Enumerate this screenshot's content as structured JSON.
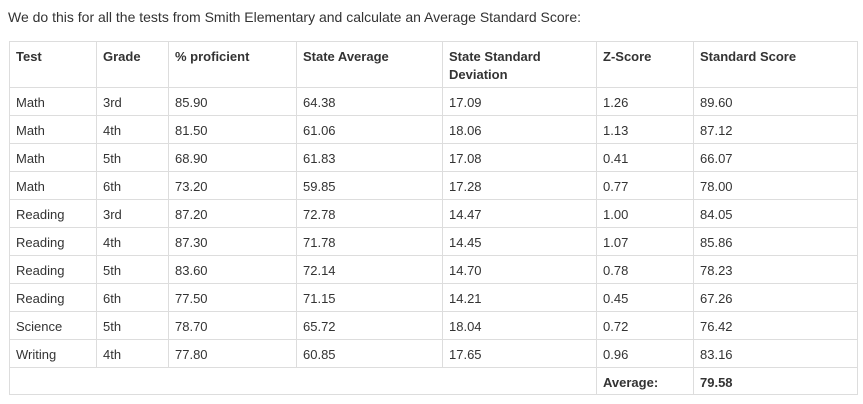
{
  "intro_text": "We do this for all the tests from Smith Elementary and calculate an Average Standard Score:",
  "table": {
    "headers": [
      "Test",
      "Grade",
      "% proficient",
      "State Average",
      "State Standard Deviation",
      "Z-Score",
      "Standard Score"
    ],
    "rows": [
      [
        "Math",
        "3rd",
        "85.90",
        "64.38",
        "17.09",
        "1.26",
        "89.60"
      ],
      [
        "Math",
        "4th",
        "81.50",
        "61.06",
        "18.06",
        "1.13",
        "87.12"
      ],
      [
        "Math",
        "5th",
        "68.90",
        "61.83",
        "17.08",
        "0.41",
        "66.07"
      ],
      [
        "Math",
        "6th",
        "73.20",
        "59.85",
        "17.28",
        "0.77",
        "78.00"
      ],
      [
        "Reading",
        "3rd",
        "87.20",
        "72.78",
        "14.47",
        "1.00",
        "84.05"
      ],
      [
        "Reading",
        "4th",
        "87.30",
        "71.78",
        "14.45",
        "1.07",
        "85.86"
      ],
      [
        "Reading",
        "5th",
        "83.60",
        "72.14",
        "14.70",
        "0.78",
        "78.23"
      ],
      [
        "Reading",
        "6th",
        "77.50",
        "71.15",
        "14.21",
        "0.45",
        "67.26"
      ],
      [
        "Science",
        "5th",
        "78.70",
        "65.72",
        "18.04",
        "0.72",
        "76.42"
      ],
      [
        "Writing",
        "4th",
        "77.80",
        "60.85",
        "17.65",
        "0.96",
        "83.16"
      ]
    ],
    "footer": {
      "label": "Average:",
      "value": "79.58"
    }
  }
}
